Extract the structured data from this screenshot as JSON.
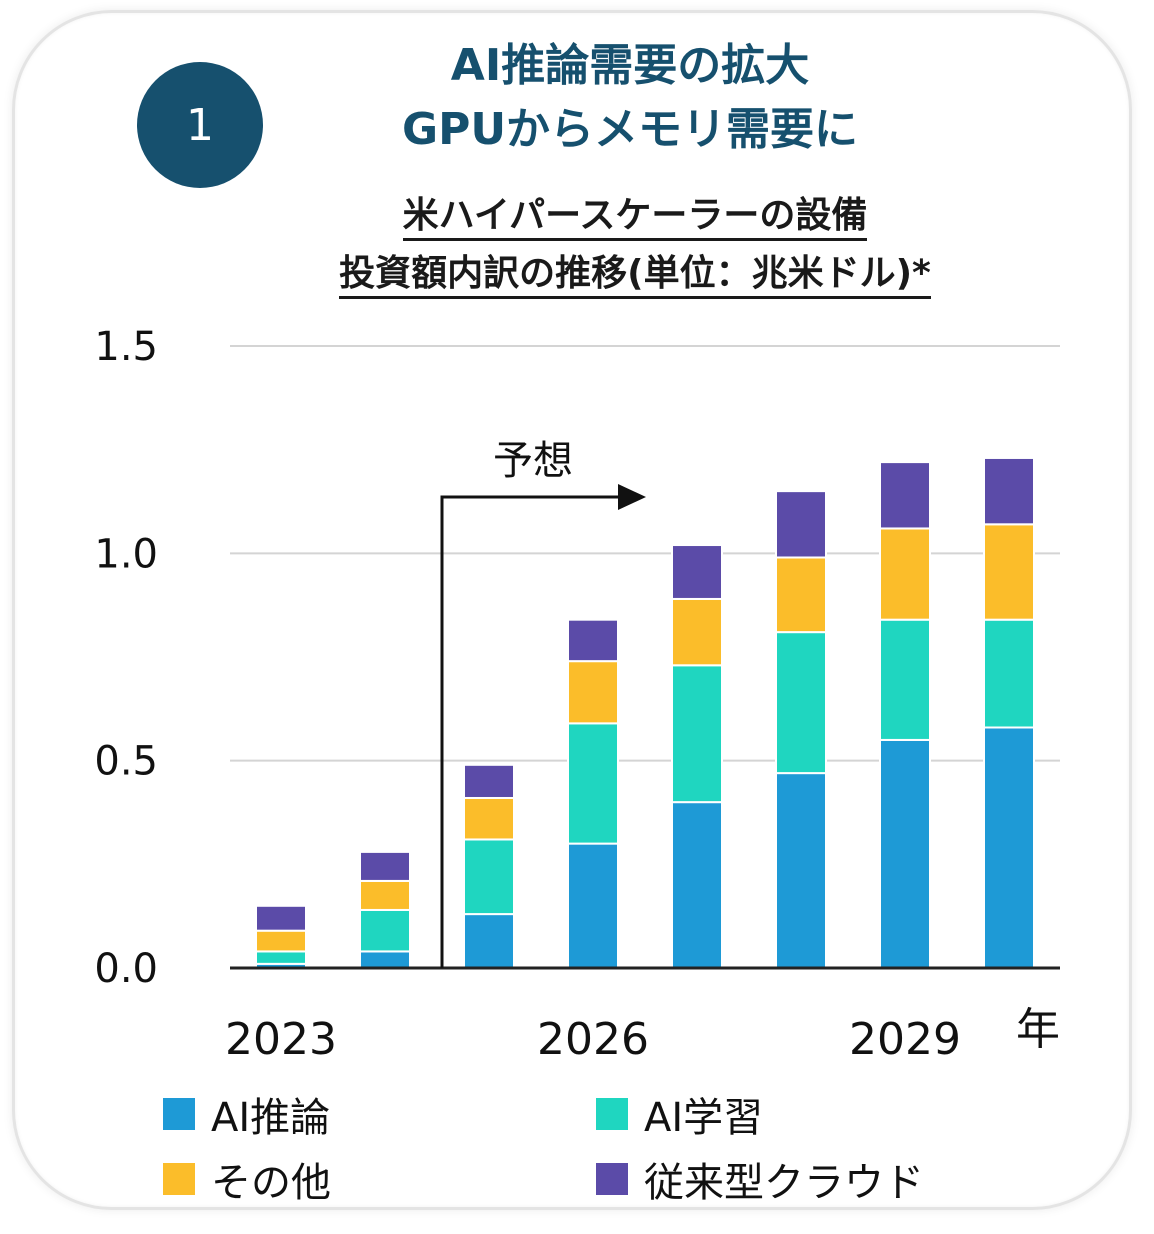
{
  "badge": {
    "number": "1"
  },
  "headline": {
    "line1": "AI推論需要の拡大",
    "line2": "GPUからメモリ需要に"
  },
  "colors": {
    "ai_inference": "#1e9ad6",
    "ai_training": "#1fd6c0",
    "other": "#fbbd2a",
    "cloud": "#5b4ba8",
    "brand": "#16506e"
  },
  "chart_data": {
    "type": "bar",
    "stacked": true,
    "title_line1": "米ハイパースケーラーの設備",
    "title_line2": "投資額内訳の推移(単位：兆米ドル)*",
    "categories": [
      "2023",
      "2024",
      "2025",
      "2026",
      "2027",
      "2028",
      "2029",
      "2030"
    ],
    "category_labels": [
      "2023",
      "",
      "",
      "2026",
      "",
      "",
      "2029",
      ""
    ],
    "xlabel": "年",
    "ylim": [
      0,
      1.5
    ],
    "yticks": [
      "0.0",
      "0.5",
      "1.0",
      "1.5"
    ],
    "grid": true,
    "series": [
      {
        "name": "AI推論",
        "values": [
          0.01,
          0.04,
          0.13,
          0.3,
          0.4,
          0.47,
          0.55,
          0.58
        ]
      },
      {
        "name": "AI学習",
        "values": [
          0.03,
          0.1,
          0.18,
          0.29,
          0.33,
          0.34,
          0.29,
          0.26
        ]
      },
      {
        "name": "その他",
        "values": [
          0.05,
          0.07,
          0.1,
          0.15,
          0.16,
          0.18,
          0.22,
          0.23
        ]
      },
      {
        "name": "従来型クラウド",
        "values": [
          0.06,
          0.07,
          0.08,
          0.1,
          0.13,
          0.16,
          0.16,
          0.16
        ]
      }
    ],
    "annotation": "予想"
  },
  "legend": {
    "ai_inference": "AI推論",
    "ai_training": "AI学習",
    "other": "その他",
    "cloud": "従来型クラウド"
  }
}
